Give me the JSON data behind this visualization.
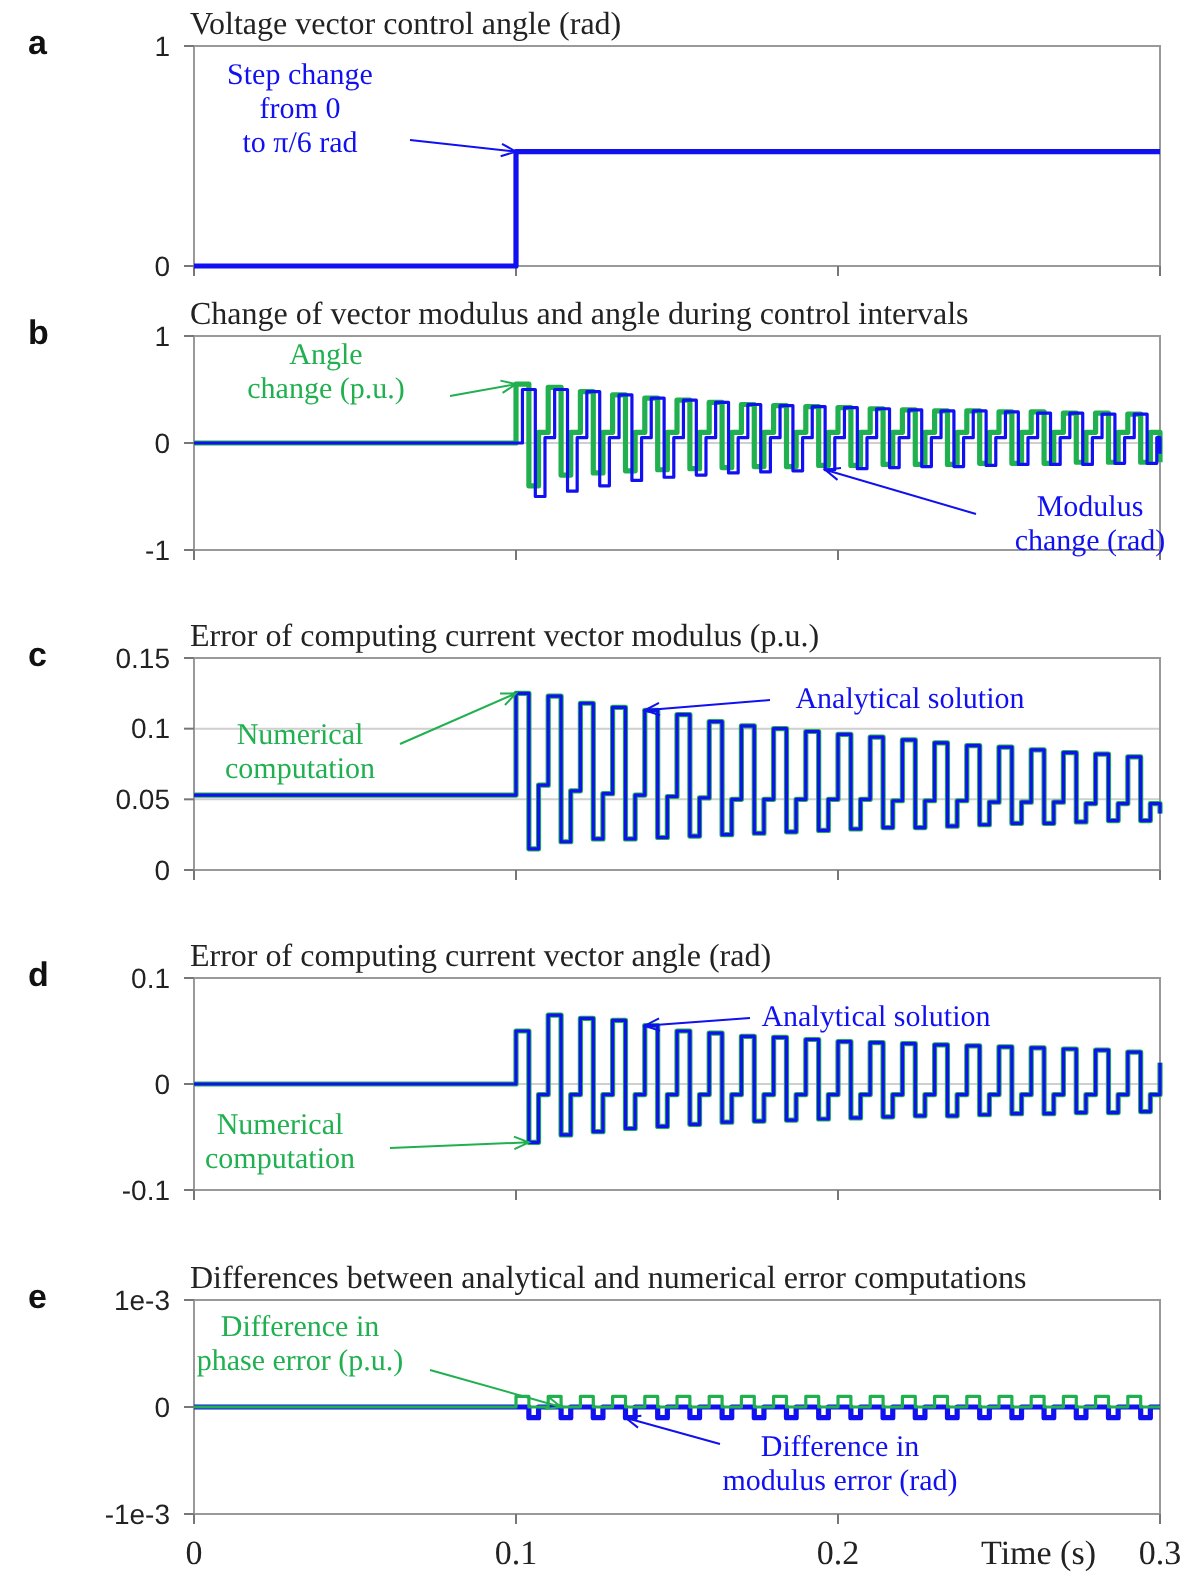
{
  "chart_data": [
    {
      "type": "step",
      "title": "Voltage vector control angle (rad)",
      "annotations": [
        "a",
        {
          "text": "Step change from 0 to π/6 rad",
          "x": 0.1,
          "y": 0.52
        }
      ],
      "x": [
        0,
        0.1,
        0.3
      ],
      "xlim": [
        0,
        0.3
      ],
      "xticks": [
        0,
        0.1,
        0.2,
        0.3
      ],
      "ylim": [
        0,
        1
      ],
      "yticks": [
        0,
        1
      ],
      "tick_labels": "y",
      "series": [
        {
          "color": "#1010f0",
          "values": [
            0,
            0.52,
            0.52
          ]
        }
      ]
    },
    {
      "type": "step",
      "title": "Change of vector modulus and angle during control intervals",
      "annotations": [
        "b"
      ],
      "xlim": [
        0,
        0.3
      ],
      "xticks": [
        0,
        0.1,
        0.2,
        0.3
      ],
      "ylim": [
        -1,
        1
      ],
      "yticks": [
        -1,
        0,
        1
      ],
      "grid": "y",
      "tick_labels": "y",
      "x": [
        0,
        0.1,
        0.104,
        0.107,
        0.11,
        0.114,
        0.117,
        0.12,
        0.124,
        0.127,
        0.13,
        0.134,
        0.137,
        0.14,
        0.144,
        0.147,
        0.15,
        0.154,
        0.157,
        0.16,
        0.164,
        0.167,
        0.17,
        0.174,
        0.177,
        0.18,
        0.184,
        0.187,
        0.19,
        0.194,
        0.197,
        0.2,
        0.204,
        0.207,
        0.21,
        0.214,
        0.217,
        0.22,
        0.224,
        0.227,
        0.23,
        0.234,
        0.237,
        0.24,
        0.244,
        0.247,
        0.25,
        0.254,
        0.257,
        0.26,
        0.264,
        0.267,
        0.27,
        0.274,
        0.277,
        0.28,
        0.284,
        0.287,
        0.29,
        0.294,
        0.297,
        0.3
      ],
      "series": [
        {
          "name": "Angle change (p.u.)",
          "color": "#20b050",
          "values": [
            0,
            0.55,
            -0.4,
            0.1,
            0.52,
            -0.3,
            0.1,
            0.48,
            -0.28,
            0.1,
            0.45,
            -0.26,
            0.1,
            0.42,
            -0.25,
            0.1,
            0.4,
            -0.24,
            0.1,
            0.38,
            -0.23,
            0.1,
            0.36,
            -0.22,
            0.1,
            0.35,
            -0.22,
            0.1,
            0.34,
            -0.21,
            0.1,
            0.33,
            -0.21,
            0.1,
            0.32,
            -0.2,
            0.1,
            0.31,
            -0.2,
            0.1,
            0.3,
            -0.2,
            0.1,
            0.3,
            -0.19,
            0.1,
            0.29,
            -0.19,
            0.1,
            0.29,
            -0.19,
            0.1,
            0.28,
            -0.18,
            0.1,
            0.28,
            -0.18,
            0.1,
            0.27,
            -0.18,
            0.1,
            -0.18
          ]
        },
        {
          "name": "Modulus change (rad)",
          "color": "#1010f0",
          "x": [
            0,
            0.102,
            0.106,
            0.109,
            0.112,
            0.116,
            0.119,
            0.122,
            0.126,
            0.129,
            0.132,
            0.136,
            0.139,
            0.142,
            0.146,
            0.149,
            0.152,
            0.156,
            0.159,
            0.162,
            0.166,
            0.169,
            0.172,
            0.176,
            0.179,
            0.182,
            0.186,
            0.189,
            0.192,
            0.196,
            0.199,
            0.202,
            0.206,
            0.209,
            0.212,
            0.216,
            0.219,
            0.222,
            0.226,
            0.229,
            0.232,
            0.236,
            0.239,
            0.242,
            0.246,
            0.249,
            0.252,
            0.256,
            0.259,
            0.262,
            0.266,
            0.269,
            0.272,
            0.276,
            0.279,
            0.282,
            0.286,
            0.289,
            0.292,
            0.296,
            0.299,
            0.3
          ],
          "values": [
            0,
            0.5,
            -0.5,
            0.05,
            0.5,
            -0.45,
            0.05,
            0.48,
            -0.4,
            0.05,
            0.45,
            -0.35,
            0.05,
            0.42,
            -0.32,
            0.05,
            0.4,
            -0.3,
            0.05,
            0.38,
            -0.28,
            0.05,
            0.36,
            -0.27,
            0.05,
            0.35,
            -0.26,
            0.05,
            0.34,
            -0.25,
            0.05,
            0.33,
            -0.24,
            0.05,
            0.32,
            -0.23,
            0.05,
            0.31,
            -0.22,
            0.05,
            0.3,
            -0.22,
            0.05,
            0.3,
            -0.21,
            0.05,
            0.29,
            -0.2,
            0.05,
            0.28,
            -0.2,
            0.05,
            0.28,
            -0.2,
            0.05,
            0.27,
            -0.19,
            0.05,
            0.27,
            -0.19,
            0.05,
            -0.1
          ]
        }
      ]
    },
    {
      "type": "step",
      "title": "Error of computing current vector modulus (p.u.)",
      "annotations": [
        "c"
      ],
      "xlim": [
        0,
        0.3
      ],
      "xticks": [
        0,
        0.1,
        0.2,
        0.3
      ],
      "ylim": [
        0,
        0.15
      ],
      "yticks": [
        0,
        0.05,
        0.1,
        0.15
      ],
      "grid": "y",
      "tick_labels": "y",
      "x": [
        0,
        0.1,
        0.104,
        0.107,
        0.11,
        0.114,
        0.117,
        0.12,
        0.124,
        0.127,
        0.13,
        0.134,
        0.137,
        0.14,
        0.144,
        0.147,
        0.15,
        0.154,
        0.157,
        0.16,
        0.164,
        0.167,
        0.17,
        0.174,
        0.177,
        0.18,
        0.184,
        0.187,
        0.19,
        0.194,
        0.197,
        0.2,
        0.204,
        0.207,
        0.21,
        0.214,
        0.217,
        0.22,
        0.224,
        0.227,
        0.23,
        0.234,
        0.237,
        0.24,
        0.244,
        0.247,
        0.25,
        0.254,
        0.257,
        0.26,
        0.264,
        0.267,
        0.27,
        0.274,
        0.277,
        0.28,
        0.284,
        0.287,
        0.29,
        0.294,
        0.297,
        0.3
      ],
      "series": [
        {
          "name": "Numerical computation",
          "color": "#20b050",
          "values": [
            0.053,
            0.125,
            0.015,
            0.06,
            0.123,
            0.02,
            0.056,
            0.118,
            0.022,
            0.054,
            0.115,
            0.022,
            0.053,
            0.113,
            0.023,
            0.052,
            0.11,
            0.024,
            0.051,
            0.105,
            0.025,
            0.05,
            0.102,
            0.026,
            0.05,
            0.1,
            0.027,
            0.05,
            0.098,
            0.028,
            0.05,
            0.096,
            0.029,
            0.05,
            0.094,
            0.03,
            0.049,
            0.092,
            0.03,
            0.049,
            0.09,
            0.031,
            0.049,
            0.088,
            0.032,
            0.048,
            0.087,
            0.033,
            0.048,
            0.085,
            0.033,
            0.048,
            0.083,
            0.034,
            0.047,
            0.082,
            0.035,
            0.047,
            0.08,
            0.035,
            0.047,
            0.04
          ]
        },
        {
          "name": "Analytical solution",
          "color": "#1010f0",
          "values": [
            0.053,
            0.125,
            0.015,
            0.06,
            0.123,
            0.02,
            0.056,
            0.118,
            0.022,
            0.054,
            0.115,
            0.022,
            0.053,
            0.113,
            0.023,
            0.052,
            0.11,
            0.024,
            0.051,
            0.105,
            0.025,
            0.05,
            0.102,
            0.026,
            0.05,
            0.1,
            0.027,
            0.05,
            0.098,
            0.028,
            0.05,
            0.096,
            0.029,
            0.05,
            0.094,
            0.03,
            0.049,
            0.092,
            0.03,
            0.049,
            0.09,
            0.031,
            0.049,
            0.088,
            0.032,
            0.048,
            0.087,
            0.033,
            0.048,
            0.085,
            0.033,
            0.048,
            0.083,
            0.034,
            0.047,
            0.082,
            0.035,
            0.047,
            0.08,
            0.035,
            0.047,
            0.04
          ]
        }
      ]
    },
    {
      "type": "step",
      "title": "Error of computing current vector angle (rad)",
      "annotations": [
        "d"
      ],
      "xlim": [
        0,
        0.3
      ],
      "xticks": [
        0,
        0.1,
        0.2,
        0.3
      ],
      "ylim": [
        -0.1,
        0.1
      ],
      "yticks": [
        -0.1,
        0,
        0.1
      ],
      "grid": "y",
      "tick_labels": "y",
      "x": [
        0,
        0.1,
        0.104,
        0.107,
        0.11,
        0.114,
        0.117,
        0.12,
        0.124,
        0.127,
        0.13,
        0.134,
        0.137,
        0.14,
        0.144,
        0.147,
        0.15,
        0.154,
        0.157,
        0.16,
        0.164,
        0.167,
        0.17,
        0.174,
        0.177,
        0.18,
        0.184,
        0.187,
        0.19,
        0.194,
        0.197,
        0.2,
        0.204,
        0.207,
        0.21,
        0.214,
        0.217,
        0.22,
        0.224,
        0.227,
        0.23,
        0.234,
        0.237,
        0.24,
        0.244,
        0.247,
        0.25,
        0.254,
        0.257,
        0.26,
        0.264,
        0.267,
        0.27,
        0.274,
        0.277,
        0.28,
        0.284,
        0.287,
        0.29,
        0.294,
        0.297,
        0.3
      ],
      "series": [
        {
          "name": "Numerical computation",
          "color": "#20b050",
          "values": [
            0,
            0.05,
            -0.055,
            -0.01,
            0.065,
            -0.048,
            -0.01,
            0.062,
            -0.045,
            -0.01,
            0.06,
            -0.042,
            -0.01,
            0.055,
            -0.04,
            -0.01,
            0.05,
            -0.038,
            -0.01,
            0.048,
            -0.036,
            -0.01,
            0.045,
            -0.035,
            -0.01,
            0.044,
            -0.034,
            -0.01,
            0.042,
            -0.033,
            -0.01,
            0.04,
            -0.032,
            -0.01,
            0.039,
            -0.031,
            -0.01,
            0.038,
            -0.03,
            -0.01,
            0.037,
            -0.03,
            -0.01,
            0.036,
            -0.029,
            -0.01,
            0.035,
            -0.028,
            -0.01,
            0.034,
            -0.028,
            -0.01,
            0.033,
            -0.027,
            -0.01,
            0.032,
            -0.027,
            -0.01,
            0.03,
            -0.026,
            -0.01,
            0.02
          ]
        },
        {
          "name": "Analytical solution",
          "color": "#1010f0",
          "values": [
            0,
            0.05,
            -0.055,
            -0.01,
            0.065,
            -0.048,
            -0.01,
            0.062,
            -0.045,
            -0.01,
            0.06,
            -0.042,
            -0.01,
            0.055,
            -0.04,
            -0.01,
            0.05,
            -0.038,
            -0.01,
            0.048,
            -0.036,
            -0.01,
            0.045,
            -0.035,
            -0.01,
            0.044,
            -0.034,
            -0.01,
            0.042,
            -0.033,
            -0.01,
            0.04,
            -0.032,
            -0.01,
            0.039,
            -0.031,
            -0.01,
            0.038,
            -0.03,
            -0.01,
            0.037,
            -0.03,
            -0.01,
            0.036,
            -0.029,
            -0.01,
            0.035,
            -0.028,
            -0.01,
            0.034,
            -0.028,
            -0.01,
            0.033,
            -0.027,
            -0.01,
            0.032,
            -0.027,
            -0.01,
            0.03,
            -0.026,
            -0.01,
            0.02
          ]
        }
      ]
    },
    {
      "type": "step",
      "title": "Differences between analytical and numerical error computations",
      "annotations": [
        "e"
      ],
      "xlabel": "Time (s)",
      "xlim": [
        0,
        0.3
      ],
      "xticks": [
        0,
        0.1,
        0.2,
        0.3
      ],
      "ylim": [
        -0.001,
        0.001
      ],
      "yticks": [
        {
          "value": -0.001,
          "label": "-1e-3"
        },
        0,
        {
          "value": 0.001,
          "label": "1e-3"
        }
      ],
      "x": [
        0,
        0.1,
        0.104,
        0.107,
        0.11,
        0.114,
        0.117,
        0.12,
        0.124,
        0.127,
        0.13,
        0.134,
        0.137,
        0.14,
        0.144,
        0.147,
        0.15,
        0.154,
        0.157,
        0.16,
        0.164,
        0.167,
        0.17,
        0.174,
        0.177,
        0.18,
        0.184,
        0.187,
        0.19,
        0.194,
        0.197,
        0.2,
        0.204,
        0.207,
        0.21,
        0.214,
        0.217,
        0.22,
        0.224,
        0.227,
        0.23,
        0.234,
        0.237,
        0.24,
        0.244,
        0.247,
        0.25,
        0.254,
        0.257,
        0.26,
        0.264,
        0.267,
        0.27,
        0.274,
        0.277,
        0.28,
        0.284,
        0.287,
        0.29,
        0.294,
        0.297,
        0.3
      ],
      "series": [
        {
          "name": "Difference in modulus error (rad)",
          "color": "#1010f0",
          "values": [
            0,
            0,
            -0.0001,
            0,
            0,
            -0.0001,
            0,
            0,
            -0.0001,
            0,
            0,
            -0.0001,
            0,
            0,
            -0.0001,
            0,
            0,
            -0.0001,
            0,
            0,
            -0.0001,
            0,
            0,
            -0.0001,
            0,
            0,
            -0.0001,
            0,
            0,
            -0.0001,
            0,
            0,
            -0.0001,
            0,
            0,
            -0.0001,
            0,
            0,
            -0.0001,
            0,
            0,
            -0.0001,
            0,
            0,
            -0.0001,
            0,
            0,
            -0.0001,
            0,
            0,
            -0.0001,
            0,
            0,
            -0.0001,
            0,
            0,
            -0.0001,
            0,
            0,
            -0.0001,
            0,
            0
          ]
        },
        {
          "name": "Difference in phase error (p.u.)",
          "color": "#20b050",
          "values": [
            0,
            0.0001,
            0,
            0,
            0.0001,
            0,
            0,
            0.0001,
            0,
            0,
            0.0001,
            0,
            0,
            0.0001,
            0,
            0,
            0.0001,
            0,
            0,
            0.0001,
            0,
            0,
            0.0001,
            0,
            0,
            0.0001,
            0,
            0,
            0.0001,
            0,
            0,
            0.0001,
            0,
            0,
            0.0001,
            0,
            0,
            0.0001,
            0,
            0,
            0.0001,
            0,
            0,
            0.0001,
            0,
            0,
            0.0001,
            0,
            0,
            0.0001,
            0,
            0,
            0.0001,
            0,
            0,
            0.0001,
            0,
            0,
            0.0001,
            0,
            0,
            0
          ]
        }
      ]
    }
  ]
}
